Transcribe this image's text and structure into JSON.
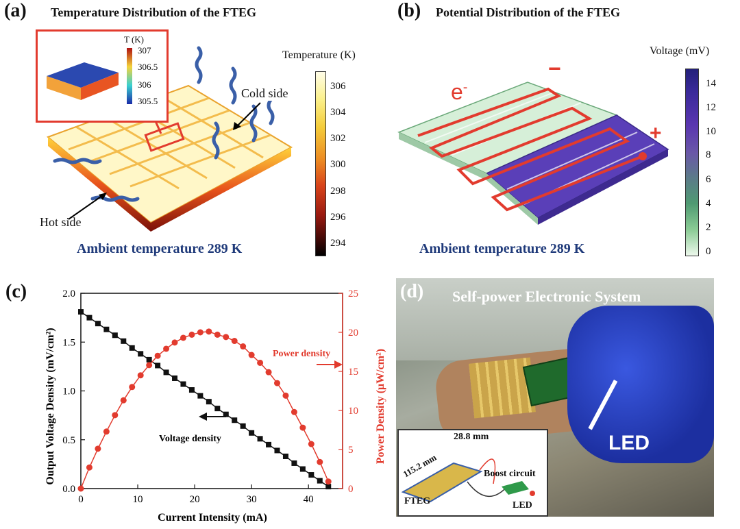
{
  "panel_a": {
    "letter": "(a)",
    "title": "Temperature Distribution of the FTEG",
    "colorbar_title": "Temperature (K)",
    "colorbar_ticks": [
      "306",
      "304",
      "302",
      "300",
      "298",
      "296",
      "294"
    ],
    "inset_title": "T (K)",
    "inset_ticks": [
      "307",
      "306.5",
      "306",
      "305.5"
    ],
    "label_cold": "Cold side",
    "label_hot": "Hot side",
    "ambient": "Ambient temperature 289 K"
  },
  "panel_b": {
    "letter": "(b)",
    "title": "Potential Distribution of the FTEG",
    "colorbar_title": "Voltage (mV)",
    "colorbar_ticks": [
      "14",
      "12",
      "10",
      "8",
      "6",
      "4",
      "2",
      "0"
    ],
    "electron_label": "e",
    "electron_sup": "-",
    "minus_sign": "−",
    "plus_sign": "+",
    "ambient": "Ambient temperature 289 K"
  },
  "panel_c": {
    "letter": "(c)"
  },
  "panel_d": {
    "letter": "(d)",
    "title": "Self-power Electronic System",
    "led_label": "LED",
    "inset_dim1": "115.2 mm",
    "inset_dim2": "28.8 mm",
    "inset_boost": "Boost circuit",
    "inset_fteg": "FTEG",
    "inset_led": "LED"
  },
  "chart_data": {
    "type": "line",
    "xlabel": "Current Intensity (mA)",
    "ylabel": "Output Voltage Density (mV/cm²)",
    "ylabel2": "Power Density (μW/cm²)",
    "xlim": [
      0,
      46
    ],
    "ylim": [
      0,
      2.0
    ],
    "y2lim": [
      0,
      25
    ],
    "xticks": [
      0,
      10,
      20,
      30,
      40
    ],
    "yticks": [
      0.0,
      0.5,
      1.0,
      1.5,
      2.0
    ],
    "y2ticks": [
      0,
      5,
      10,
      15,
      20,
      25
    ],
    "series": [
      {
        "name": "Voltage density",
        "axis": "left",
        "color": "#111111",
        "marker": "square",
        "x": [
          0,
          1.5,
          3,
          4.5,
          6,
          7.5,
          9,
          10.5,
          12,
          13.5,
          15,
          16.5,
          18,
          19.5,
          21,
          22.5,
          24,
          25.5,
          27,
          28.5,
          30,
          31.5,
          33,
          34.5,
          36,
          37.5,
          39,
          40.5,
          42,
          43.5
        ],
        "values": [
          1.81,
          1.75,
          1.69,
          1.63,
          1.57,
          1.51,
          1.44,
          1.38,
          1.32,
          1.26,
          1.19,
          1.13,
          1.07,
          1.01,
          0.95,
          0.89,
          0.82,
          0.76,
          0.7,
          0.64,
          0.57,
          0.51,
          0.45,
          0.39,
          0.33,
          0.26,
          0.2,
          0.14,
          0.08,
          0.02
        ]
      },
      {
        "name": "Power density",
        "axis": "right",
        "color": "#e23b2e",
        "marker": "circle",
        "x": [
          0,
          1.5,
          3,
          4.5,
          6,
          7.5,
          9,
          10.5,
          12,
          13.5,
          15,
          16.5,
          18,
          19.5,
          21,
          22.5,
          24,
          25.5,
          27,
          28.5,
          30,
          31.5,
          33,
          34.5,
          36,
          37.5,
          39,
          40.5,
          42,
          43.5
        ],
        "values": [
          0,
          2.7,
          5.1,
          7.3,
          9.4,
          11.3,
          13.0,
          14.5,
          15.8,
          17.0,
          17.9,
          18.7,
          19.3,
          19.7,
          20.0,
          20.1,
          19.7,
          19.4,
          18.9,
          18.2,
          17.1,
          16.1,
          14.9,
          13.5,
          11.9,
          9.8,
          7.8,
          5.7,
          3.4,
          0.9
        ]
      }
    ],
    "annotations": [
      "Power density",
      "Voltage density"
    ]
  }
}
